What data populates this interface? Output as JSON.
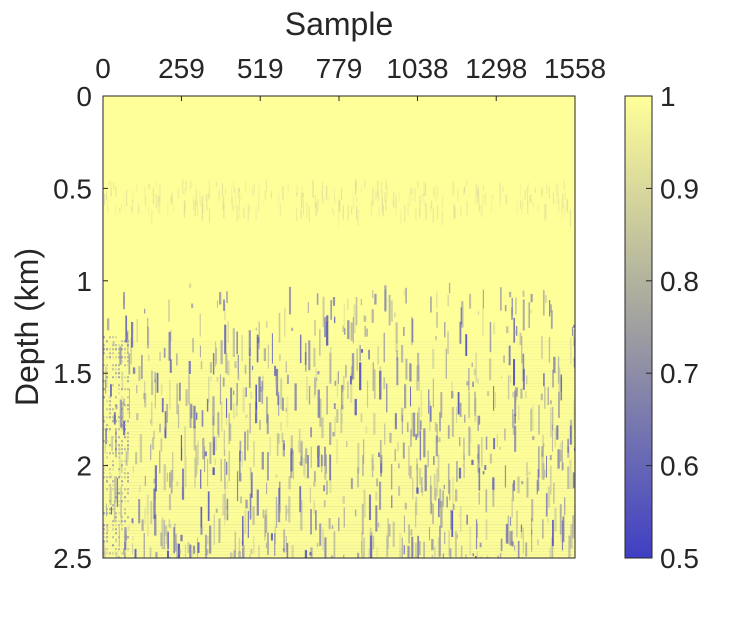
{
  "chart_data": {
    "type": "heatmap",
    "title": "",
    "xlabel": "Sample",
    "ylabel": "Depth (km)",
    "x_axis_position": "top",
    "y_axis_direction": "reversed",
    "xlim": [
      0,
      1558
    ],
    "ylim": [
      0,
      2.5
    ],
    "xticks": [
      0,
      259,
      519,
      779,
      1038,
      1298,
      1558
    ],
    "xtick_labels": [
      "0",
      "259",
      "519",
      "779",
      "1038",
      "1298",
      "1558"
    ],
    "yticks": [
      0,
      0.5,
      1,
      1.5,
      2,
      2.5
    ],
    "ytick_labels": [
      "0",
      "0.5",
      "1",
      "1.5",
      "2",
      "2.5"
    ],
    "colorbar": {
      "range": [
        0.5,
        1
      ],
      "ticks": [
        0.5,
        0.6,
        0.7,
        0.8,
        0.9,
        1
      ],
      "tick_labels": [
        "0.5",
        "0.6",
        "0.7",
        "0.8",
        "0.9",
        "1"
      ],
      "color_low": "#3f3fc4",
      "color_mid": "#a0a0a0",
      "color_high": "#ffff99",
      "placement": "right"
    },
    "value_bands": [
      {
        "depth_range": [
          0,
          0.45
        ],
        "value": 1.0
      },
      {
        "depth_range": [
          0.45,
          0.62
        ],
        "value": 0.97
      },
      {
        "depth_range": [
          0.62,
          1.0
        ],
        "value": 1.0
      },
      {
        "depth_range": [
          1.0,
          2.5
        ],
        "value": 0.93
      }
    ],
    "grid": false
  }
}
